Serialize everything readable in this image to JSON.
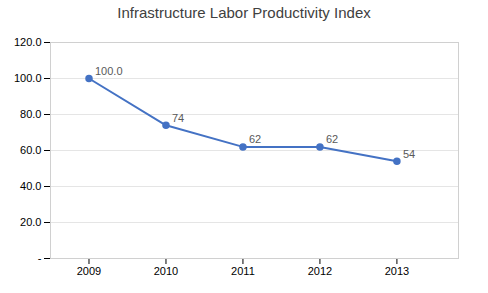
{
  "chart_data": {
    "type": "line",
    "title": "Infrastructure Labor Productivity Index",
    "x": [
      2009,
      2010,
      2011,
      2012,
      2013
    ],
    "values": [
      100.0,
      74,
      62,
      62,
      54
    ],
    "value_labels": [
      "100.0",
      "74",
      "62",
      "62",
      "54"
    ],
    "data_labels": true,
    "color": "#4472C4",
    "marker": "circle",
    "xlim": [
      2008.5,
      2013.8
    ],
    "xticks": [
      2009,
      2010,
      2011,
      2012,
      2013
    ],
    "ylim": [
      0,
      120
    ],
    "yticks": [
      {
        "value": 0,
        "label": "-"
      },
      {
        "value": 20,
        "label": "20.0"
      },
      {
        "value": 40,
        "label": "40.0"
      },
      {
        "value": 60,
        "label": "60.0"
      },
      {
        "value": 80,
        "label": "80.0"
      },
      {
        "value": 100,
        "label": "100.0"
      },
      {
        "value": 120,
        "label": "120.0"
      }
    ],
    "grid": true
  }
}
